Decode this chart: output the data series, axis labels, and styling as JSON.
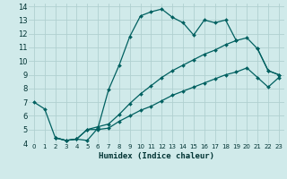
{
  "xlabel": "Humidex (Indice chaleur)",
  "bg_color": "#d0eaea",
  "grid_color": "#b0d0d0",
  "line_color": "#006060",
  "xlim": [
    -0.5,
    23.5
  ],
  "ylim": [
    4,
    14.2
  ],
  "xticks": [
    0,
    1,
    2,
    3,
    4,
    5,
    6,
    7,
    8,
    9,
    10,
    11,
    12,
    13,
    14,
    15,
    16,
    17,
    18,
    19,
    20,
    21,
    22,
    23
  ],
  "yticks": [
    4,
    5,
    6,
    7,
    8,
    9,
    10,
    11,
    12,
    13,
    14
  ],
  "lines": [
    {
      "x": [
        0,
        1,
        2,
        3,
        4,
        5,
        6,
        7,
        8,
        9,
        10,
        11,
        12,
        13,
        14,
        15,
        16,
        17,
        18,
        19,
        20,
        21,
        22,
        23
      ],
      "y": [
        7.0,
        6.5,
        4.4,
        4.2,
        4.3,
        4.2,
        5.1,
        7.9,
        9.7,
        11.8,
        13.3,
        13.6,
        13.8,
        13.2,
        12.8,
        11.9,
        13.0,
        12.8,
        13.0,
        11.5,
        null,
        10.9,
        9.3,
        9.0
      ]
    },
    {
      "x": [
        2,
        3,
        4,
        5,
        6,
        7,
        8,
        9,
        10,
        11,
        12,
        13,
        14,
        15,
        16,
        17,
        18,
        19,
        20,
        21,
        22,
        23
      ],
      "y": [
        4.4,
        4.2,
        4.3,
        5.0,
        5.2,
        5.4,
        6.1,
        6.9,
        7.6,
        8.2,
        8.8,
        9.3,
        9.7,
        10.1,
        10.5,
        10.8,
        11.2,
        11.5,
        11.7,
        10.9,
        9.3,
        9.0
      ]
    },
    {
      "x": [
        2,
        3,
        4,
        5,
        6,
        7,
        8,
        9,
        10,
        11,
        12,
        13,
        14,
        15,
        16,
        17,
        18,
        19,
        20,
        21,
        22,
        23
      ],
      "y": [
        4.4,
        4.2,
        4.3,
        5.0,
        5.0,
        5.1,
        5.6,
        6.0,
        6.4,
        6.7,
        7.1,
        7.5,
        7.8,
        8.1,
        8.4,
        8.7,
        9.0,
        9.2,
        9.5,
        8.8,
        8.1,
        8.8
      ]
    }
  ]
}
